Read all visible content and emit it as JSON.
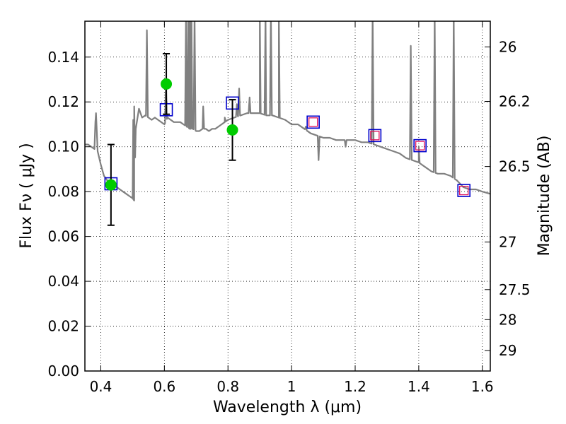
{
  "chart_data": {
    "type": "scatter",
    "xlabel": "Wavelength  λ (μm)",
    "ylabel": "Flux  Fν  ( μJy )",
    "ylabel_right": "Magnitude (AB)",
    "xlim": [
      0.35,
      1.625
    ],
    "ylim": [
      0.0,
      0.156
    ],
    "grid": true,
    "x_ticks": [
      {
        "value": 0.4,
        "label": "0.4"
      },
      {
        "value": 0.6,
        "label": "0.6"
      },
      {
        "value": 0.8,
        "label": "0.8"
      },
      {
        "value": 1.0,
        "label": "1"
      },
      {
        "value": 1.2,
        "label": "1.2"
      },
      {
        "value": 1.4,
        "label": "1.4"
      },
      {
        "value": 1.6,
        "label": "1.6"
      }
    ],
    "y_ticks": [
      {
        "value": 0.0,
        "label": "0.00"
      },
      {
        "value": 0.02,
        "label": "0.02"
      },
      {
        "value": 0.04,
        "label": "0.04"
      },
      {
        "value": 0.06,
        "label": "0.06"
      },
      {
        "value": 0.08,
        "label": "0.08"
      },
      {
        "value": 0.1,
        "label": "0.10"
      },
      {
        "value": 0.12,
        "label": "0.12"
      },
      {
        "value": 0.14,
        "label": "0.14"
      }
    ],
    "right_ticks": [
      {
        "mag": 26,
        "label": "26"
      },
      {
        "mag": 26.2,
        "label": "26.2"
      },
      {
        "mag": 26.5,
        "label": "26.5"
      },
      {
        "mag": 27,
        "label": "27"
      },
      {
        "mag": 27.5,
        "label": "27.5"
      },
      {
        "mag": 28,
        "label": "28"
      },
      {
        "mag": 29,
        "label": "29"
      }
    ],
    "colors": {
      "model": "#808080",
      "observed": "#00cc00",
      "model_box": "#0000cc",
      "model_inner": "#e0105a",
      "errorbar": "#000000"
    },
    "model_spectrum": {
      "x": [
        0.35,
        0.36,
        0.37,
        0.38,
        0.385,
        0.39,
        0.4,
        0.41,
        0.42,
        0.43,
        0.44,
        0.45,
        0.46,
        0.47,
        0.48,
        0.49,
        0.5,
        0.505,
        0.51,
        0.52,
        0.525,
        0.53,
        0.54,
        0.55,
        0.56,
        0.57,
        0.58,
        0.59,
        0.6,
        0.61,
        0.62,
        0.63,
        0.64,
        0.65,
        0.66,
        0.67,
        0.68,
        0.69,
        0.7,
        0.71,
        0.72,
        0.73,
        0.74,
        0.75,
        0.76,
        0.77,
        0.78,
        0.79,
        0.8,
        0.82,
        0.84,
        0.86,
        0.88,
        0.9,
        0.92,
        0.94,
        0.96,
        0.98,
        1.0,
        1.02,
        1.04,
        1.06,
        1.08,
        1.1,
        1.12,
        1.14,
        1.16,
        1.18,
        1.2,
        1.22,
        1.24,
        1.26,
        1.28,
        1.3,
        1.32,
        1.34,
        1.36,
        1.38,
        1.4,
        1.42,
        1.44,
        1.46,
        1.48,
        1.5,
        1.52,
        1.54,
        1.56,
        1.58,
        1.6,
        1.625
      ],
      "y": [
        0.101,
        0.101,
        0.1,
        0.099,
        0.115,
        0.098,
        0.092,
        0.087,
        0.085,
        0.084,
        0.083,
        0.082,
        0.081,
        0.08,
        0.079,
        0.078,
        0.077,
        0.076,
        0.108,
        0.117,
        0.115,
        0.113,
        0.114,
        0.113,
        0.112,
        0.113,
        0.112,
        0.111,
        0.11,
        0.113,
        0.112,
        0.111,
        0.111,
        0.111,
        0.11,
        0.109,
        0.108,
        0.108,
        0.107,
        0.107,
        0.108,
        0.108,
        0.107,
        0.108,
        0.108,
        0.109,
        0.11,
        0.111,
        0.112,
        0.113,
        0.114,
        0.115,
        0.115,
        0.115,
        0.114,
        0.114,
        0.113,
        0.112,
        0.11,
        0.11,
        0.108,
        0.106,
        0.105,
        0.104,
        0.104,
        0.103,
        0.103,
        0.103,
        0.103,
        0.102,
        0.102,
        0.101,
        0.1,
        0.099,
        0.098,
        0.097,
        0.095,
        0.094,
        0.093,
        0.091,
        0.089,
        0.088,
        0.088,
        0.087,
        0.085,
        0.082,
        0.081,
        0.081,
        0.08,
        0.079
      ]
    },
    "emission_lines": [
      {
        "x": 0.383,
        "peak": 0.111
      },
      {
        "x": 0.502,
        "peak": 0.112
      },
      {
        "x": 0.505,
        "peak": 0.118
      },
      {
        "x": 0.545,
        "peak": 0.152
      },
      {
        "x": 0.605,
        "peak": 0.13
      },
      {
        "x": 0.668,
        "peak": 0.16
      },
      {
        "x": 0.675,
        "peak": 0.16
      },
      {
        "x": 0.68,
        "peak": 0.16
      },
      {
        "x": 0.685,
        "peak": 0.16
      },
      {
        "x": 0.695,
        "peak": 0.16
      },
      {
        "x": 0.722,
        "peak": 0.118
      },
      {
        "x": 0.79,
        "peak": 0.113
      },
      {
        "x": 0.828,
        "peak": 0.119
      },
      {
        "x": 0.835,
        "peak": 0.126
      },
      {
        "x": 0.868,
        "peak": 0.122
      },
      {
        "x": 0.9,
        "peak": 0.16
      },
      {
        "x": 0.918,
        "peak": 0.16
      },
      {
        "x": 0.935,
        "peak": 0.16
      },
      {
        "x": 0.96,
        "peak": 0.16
      },
      {
        "x": 1.045,
        "peak": 0.109
      },
      {
        "x": 1.255,
        "peak": 0.16
      },
      {
        "x": 1.375,
        "peak": 0.145
      },
      {
        "x": 1.4,
        "peak": 0.1
      },
      {
        "x": 1.45,
        "peak": 0.16
      },
      {
        "x": 1.51,
        "peak": 0.16
      }
    ],
    "absorption_lines": [
      {
        "x": 1.085,
        "dip": 0.094
      },
      {
        "x": 1.17,
        "dip": 0.1
      }
    ],
    "observed": {
      "x": [
        0.432,
        0.606,
        0.814
      ],
      "y": [
        0.083,
        0.128,
        0.1075
      ],
      "err": [
        0.018,
        0.0135,
        0.0135
      ]
    },
    "model_photometry": {
      "x": [
        0.432,
        0.606,
        0.814,
        1.068,
        1.262,
        1.404,
        1.542
      ],
      "y": [
        0.0835,
        0.1165,
        0.1195,
        0.111,
        0.105,
        0.1005,
        0.0805
      ]
    }
  }
}
